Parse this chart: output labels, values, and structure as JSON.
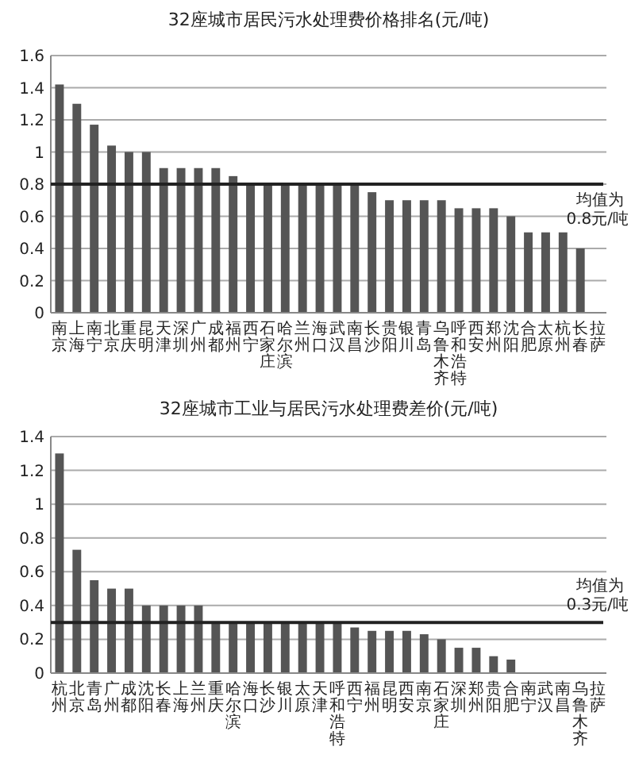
{
  "chart_data": [
    {
      "type": "bar",
      "title": "32座城市居民污水处理费价格排名(元/吨)",
      "categories": [
        "南京",
        "上海",
        "南宁",
        "北京",
        "重庆",
        "昆明",
        "天津",
        "深圳",
        "广州",
        "成都",
        "福州",
        "西宁",
        "石家庄",
        "哈尔滨",
        "兰州",
        "海口",
        "武汉",
        "南昌",
        "长沙",
        "贵阳",
        "银川",
        "青岛",
        "乌鲁木齐",
        "呼和浩特",
        "西安",
        "郑州",
        "沈阳",
        "合肥",
        "太原",
        "杭州",
        "长春",
        "拉萨"
      ],
      "values": [
        1.42,
        1.3,
        1.17,
        1.04,
        1.0,
        1.0,
        0.9,
        0.9,
        0.9,
        0.9,
        0.85,
        0.8,
        0.8,
        0.8,
        0.8,
        0.8,
        0.8,
        0.8,
        0.75,
        0.7,
        0.7,
        0.7,
        0.7,
        0.65,
        0.65,
        0.65,
        0.6,
        0.5,
        0.5,
        0.5,
        0.4,
        0
      ],
      "color": "#555555",
      "ylim": [
        0,
        1.6
      ],
      "yticks": [
        0,
        0.2,
        0.4,
        0.6,
        0.8,
        1,
        1.2,
        1.4,
        1.6
      ],
      "grid": "y",
      "ref_lines": [
        {
          "axis": "y",
          "value": 0.8,
          "label": "均值为 0.8元/吨",
          "color": "#222222"
        }
      ]
    },
    {
      "type": "bar",
      "title": "32座城市工业与居民污水处理费差价(元/吨)",
      "categories": [
        "杭州",
        "北京",
        "青岛",
        "广州",
        "成都",
        "沈阳",
        "长春",
        "上海",
        "兰州",
        "重庆",
        "哈尔滨",
        "海口",
        "长沙",
        "银川",
        "太原",
        "天津",
        "呼和浩特",
        "西宁",
        "福州",
        "昆明",
        "西安",
        "南京",
        "石家庄",
        "深圳",
        "郑州",
        "贵阳",
        "合肥",
        "南宁",
        "武汉",
        "南昌",
        "乌鲁木齐",
        "拉萨"
      ],
      "values": [
        1.3,
        0.73,
        0.55,
        0.5,
        0.5,
        0.4,
        0.4,
        0.4,
        0.4,
        0.3,
        0.3,
        0.3,
        0.3,
        0.3,
        0.3,
        0.3,
        0.3,
        0.27,
        0.25,
        0.25,
        0.25,
        0.23,
        0.2,
        0.15,
        0.15,
        0.1,
        0.08,
        0,
        0,
        0,
        0,
        0
      ],
      "color": "#555555",
      "ylim": [
        0,
        1.4
      ],
      "yticks": [
        0,
        0.2,
        0.4,
        0.6,
        0.8,
        1,
        1.2,
        1.4
      ],
      "grid": "y",
      "ref_lines": [
        {
          "axis": "y",
          "value": 0.3,
          "label": "均值为 0.3元/吨",
          "color": "#222222"
        }
      ]
    }
  ]
}
